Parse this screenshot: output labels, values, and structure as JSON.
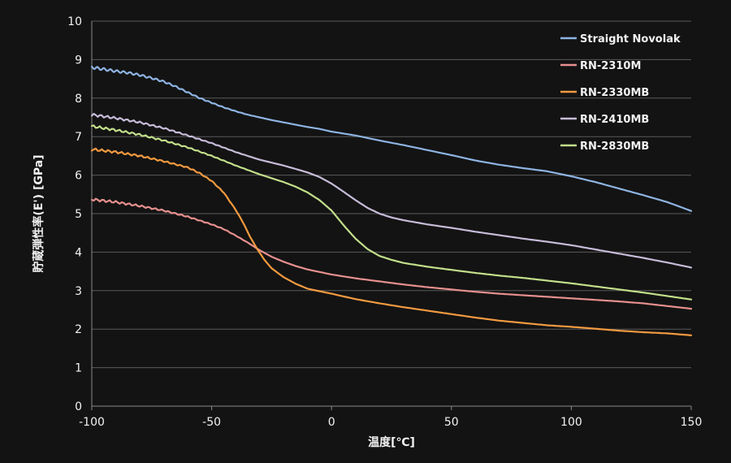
{
  "chart_data": {
    "type": "line",
    "title": "",
    "xlabel": "温度[℃]",
    "ylabel": "貯蔵弾性率(E') [GPa]",
    "xlim": [
      -100,
      150
    ],
    "ylim": [
      0,
      10
    ],
    "xticks": [
      -100,
      -50,
      0,
      50,
      100,
      150
    ],
    "yticks": [
      0,
      1,
      2,
      3,
      4,
      5,
      6,
      7,
      8,
      9,
      10
    ],
    "grid": true,
    "legend_position": "top-right",
    "series": [
      {
        "name": "Straight Novolak",
        "color": "#8eb4e3",
        "x": [
          -100,
          -95,
          -90,
          -85,
          -80,
          -75,
          -70,
          -65,
          -60,
          -55,
          -50,
          -45,
          -40,
          -35,
          -30,
          -25,
          -20,
          -15,
          -10,
          -5,
          0,
          10,
          20,
          30,
          40,
          50,
          60,
          70,
          80,
          90,
          100,
          110,
          120,
          130,
          140,
          150
        ],
        "y": [
          8.8,
          8.75,
          8.7,
          8.66,
          8.6,
          8.52,
          8.43,
          8.3,
          8.15,
          8.0,
          7.88,
          7.76,
          7.66,
          7.57,
          7.5,
          7.43,
          7.37,
          7.31,
          7.25,
          7.2,
          7.13,
          7.03,
          6.9,
          6.78,
          6.65,
          6.52,
          6.38,
          6.27,
          6.18,
          6.1,
          5.97,
          5.82,
          5.65,
          5.48,
          5.3,
          5.07
        ]
      },
      {
        "name": "RN-2310M",
        "color": "#e6908e",
        "x": [
          -100,
          -90,
          -80,
          -70,
          -60,
          -50,
          -45,
          -40,
          -35,
          -30,
          -25,
          -20,
          -15,
          -10,
          0,
          10,
          20,
          30,
          40,
          50,
          60,
          70,
          80,
          90,
          100,
          110,
          120,
          130,
          140,
          150
        ],
        "y": [
          5.37,
          5.3,
          5.2,
          5.08,
          4.92,
          4.72,
          4.6,
          4.43,
          4.25,
          4.05,
          3.88,
          3.75,
          3.64,
          3.55,
          3.42,
          3.32,
          3.24,
          3.16,
          3.09,
          3.03,
          2.97,
          2.92,
          2.88,
          2.84,
          2.8,
          2.76,
          2.72,
          2.67,
          2.6,
          2.53
        ]
      },
      {
        "name": "RN-2330MB",
        "color": "#f39a40",
        "x": [
          -100,
          -90,
          -80,
          -70,
          -60,
          -55,
          -50,
          -45,
          -40,
          -37,
          -34,
          -31,
          -28,
          -25,
          -20,
          -15,
          -10,
          0,
          10,
          20,
          30,
          40,
          50,
          60,
          70,
          80,
          90,
          100,
          110,
          120,
          130,
          140,
          150
        ],
        "y": [
          6.67,
          6.6,
          6.5,
          6.36,
          6.2,
          6.05,
          5.85,
          5.55,
          5.1,
          4.78,
          4.4,
          4.08,
          3.8,
          3.58,
          3.35,
          3.18,
          3.05,
          2.92,
          2.78,
          2.67,
          2.57,
          2.48,
          2.39,
          2.3,
          2.22,
          2.16,
          2.1,
          2.06,
          2.01,
          1.96,
          1.92,
          1.89,
          1.84
        ]
      },
      {
        "name": "RN-2410MB",
        "color": "#c7bcd9",
        "x": [
          -100,
          -90,
          -80,
          -70,
          -60,
          -50,
          -40,
          -30,
          -20,
          -10,
          -5,
          0,
          5,
          10,
          15,
          20,
          25,
          30,
          40,
          50,
          60,
          70,
          80,
          90,
          100,
          110,
          120,
          130,
          140,
          150
        ],
        "y": [
          7.57,
          7.48,
          7.37,
          7.22,
          7.03,
          6.83,
          6.6,
          6.4,
          6.25,
          6.07,
          5.95,
          5.78,
          5.57,
          5.35,
          5.15,
          5.0,
          4.9,
          4.83,
          4.72,
          4.63,
          4.53,
          4.44,
          4.35,
          4.27,
          4.18,
          4.07,
          3.96,
          3.85,
          3.73,
          3.6
        ]
      },
      {
        "name": "RN-2830MB",
        "color": "#c2df8a",
        "x": [
          -100,
          -90,
          -80,
          -70,
          -60,
          -50,
          -40,
          -30,
          -20,
          -15,
          -10,
          -5,
          0,
          5,
          10,
          15,
          20,
          25,
          30,
          40,
          50,
          60,
          70,
          80,
          90,
          100,
          110,
          120,
          130,
          140,
          150
        ],
        "y": [
          7.27,
          7.17,
          7.05,
          6.9,
          6.72,
          6.5,
          6.25,
          6.02,
          5.82,
          5.7,
          5.55,
          5.35,
          5.08,
          4.7,
          4.35,
          4.08,
          3.9,
          3.8,
          3.72,
          3.62,
          3.54,
          3.46,
          3.39,
          3.33,
          3.26,
          3.19,
          3.11,
          3.03,
          2.95,
          2.86,
          2.77
        ]
      }
    ]
  }
}
